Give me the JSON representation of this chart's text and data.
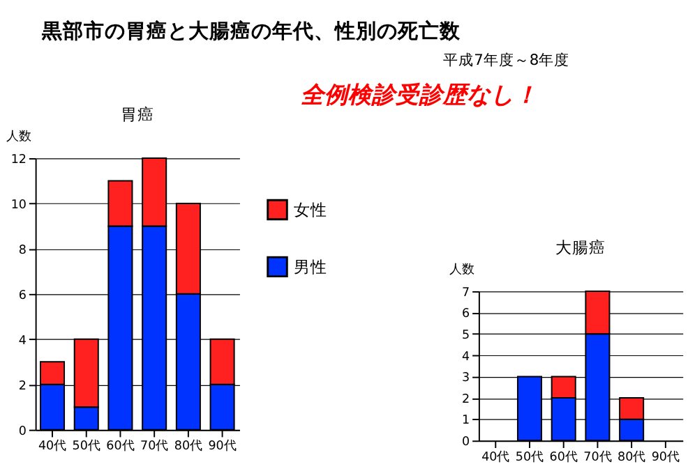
{
  "chart_data": [
    {
      "type": "bar",
      "title": "胃癌",
      "stacked": true,
      "ylabel": "人数",
      "categories": [
        "40代",
        "50代",
        "60代",
        "70代",
        "80代",
        "90代"
      ],
      "ylim": [
        0,
        12
      ],
      "yticks": [
        0,
        2,
        4,
        6,
        8,
        10,
        12
      ],
      "grid": "y",
      "legend": "right",
      "annotations": [
        "黒部市の胃癌と大腸癌の年代、性別の死亡数",
        "平成7年度～8年度",
        "全例検診受診歴なし！"
      ],
      "series": [
        {
          "name": "男性",
          "color": "#0033ff",
          "values": [
            2,
            1,
            9,
            9,
            6,
            2
          ]
        },
        {
          "name": "女性",
          "color": "#ff2020",
          "values": [
            1,
            3,
            2,
            3,
            4,
            2
          ]
        }
      ]
    },
    {
      "type": "bar",
      "title": "大腸癌",
      "stacked": true,
      "ylabel": "人数",
      "categories": [
        "40代",
        "50代",
        "60代",
        "70代",
        "80代",
        "90代"
      ],
      "ylim": [
        0,
        7
      ],
      "yticks": [
        0,
        1,
        2,
        3,
        4,
        5,
        6,
        7
      ],
      "grid": "y",
      "legend": false,
      "series": [
        {
          "color": "#0033ff",
          "values": [
            0,
            3,
            2,
            5,
            1,
            0
          ]
        },
        {
          "color": "#ff2020",
          "values": [
            0,
            0,
            1,
            2,
            1,
            0
          ]
        }
      ]
    }
  ]
}
